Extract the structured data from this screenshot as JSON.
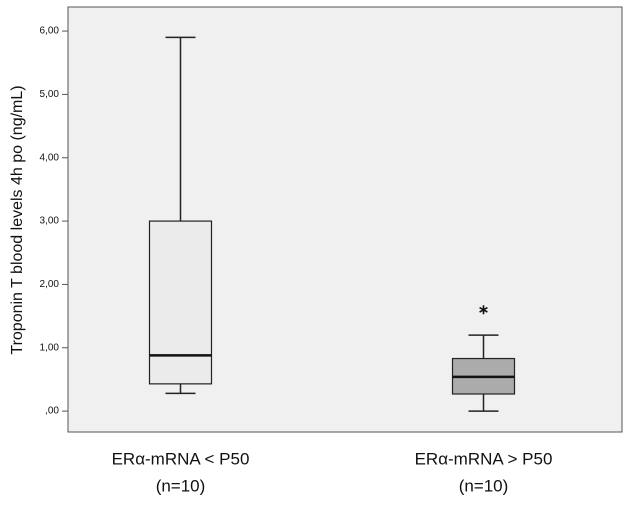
{
  "chart_data": {
    "type": "box",
    "y_label": "Troponin T blood levels 4h po (ng/mL)",
    "categories": [
      [
        "ERα-mRNA < P50",
        "(n=10)"
      ],
      [
        "ERα-mRNA > P50",
        "(n=10)"
      ]
    ],
    "boxes": [
      {
        "whislo": 0.28,
        "q1": 0.43,
        "med": 0.88,
        "q3": 3.0,
        "whishi": 5.9,
        "fliers": [],
        "color": "#ebebeb"
      },
      {
        "whislo": 0.0,
        "q1": 0.27,
        "med": 0.54,
        "q3": 0.83,
        "whishi": 1.2,
        "fliers": [
          1.6
        ],
        "color": "#ababab"
      }
    ],
    "ylim": [
      -0.33,
      6.38
    ],
    "yticks": [
      {
        "value": 0,
        "label": ",00"
      },
      {
        "value": 1,
        "label": "1,00"
      },
      {
        "value": 2,
        "label": "2,00"
      },
      {
        "value": 3,
        "label": "3,00"
      },
      {
        "value": 4,
        "label": "4,00"
      },
      {
        "value": 5,
        "label": "5,00"
      },
      {
        "value": 6,
        "label": "6,00"
      }
    ],
    "background": "#f0f0f0"
  }
}
